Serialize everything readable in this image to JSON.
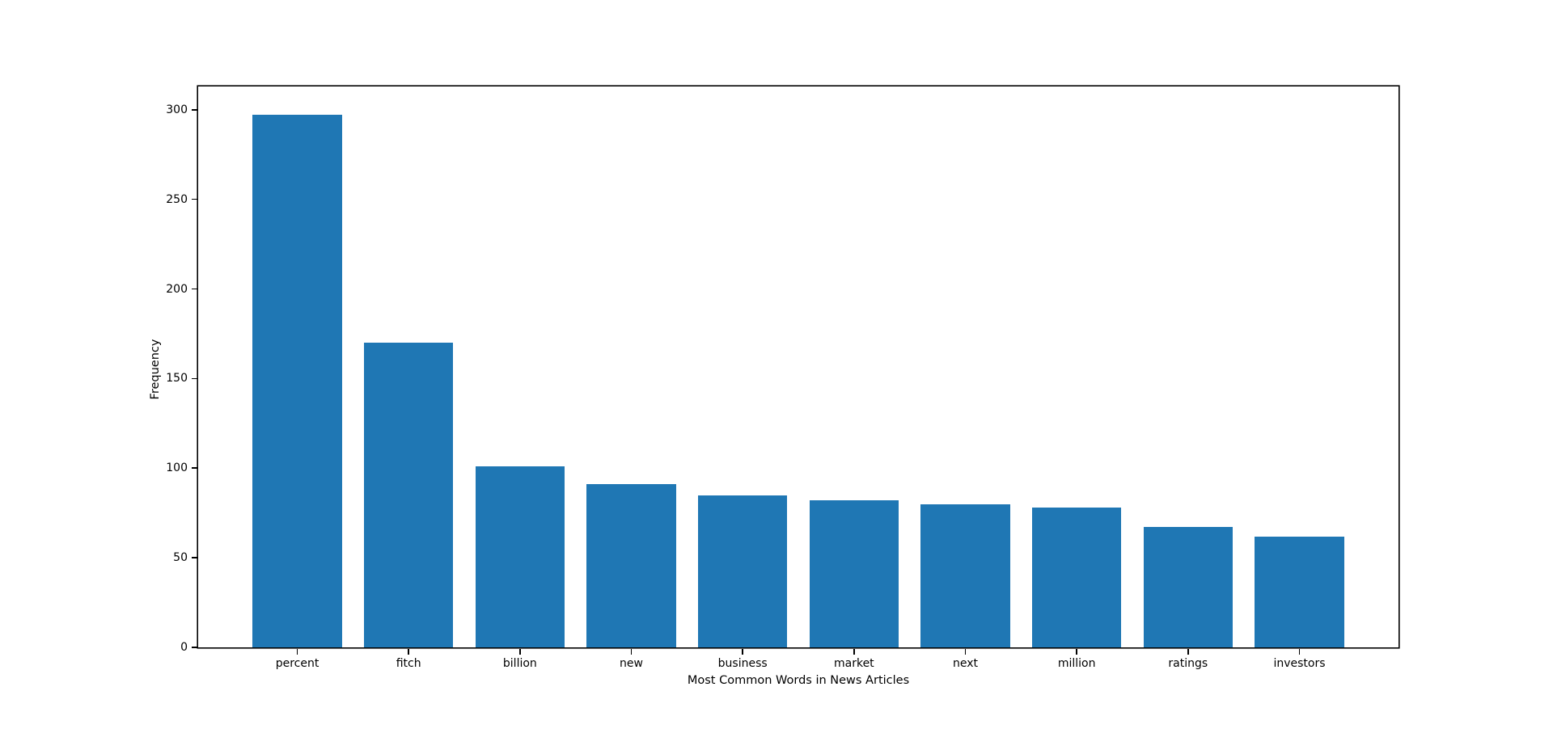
{
  "figure": {
    "background": "#ffffff"
  },
  "chart_data": {
    "type": "bar",
    "title": "",
    "categories": [
      "percent",
      "fitch",
      "billion",
      "new",
      "business",
      "market",
      "next",
      "million",
      "ratings",
      "investors"
    ],
    "values": [
      297,
      170,
      101,
      91,
      85,
      82,
      80,
      78,
      67,
      62
    ],
    "xlabel": "Most Common Words in News Articles",
    "ylabel": "Frequency",
    "yticks": [
      0,
      50,
      100,
      150,
      200,
      250,
      300
    ],
    "ylim": [
      0,
      313
    ],
    "bar_width_fraction": 0.8,
    "x_pad_units": 0.89,
    "bar_color": "#1f77b4",
    "axis_color": "#000000",
    "text_color": "#000000",
    "grid": false,
    "legend": "none"
  }
}
